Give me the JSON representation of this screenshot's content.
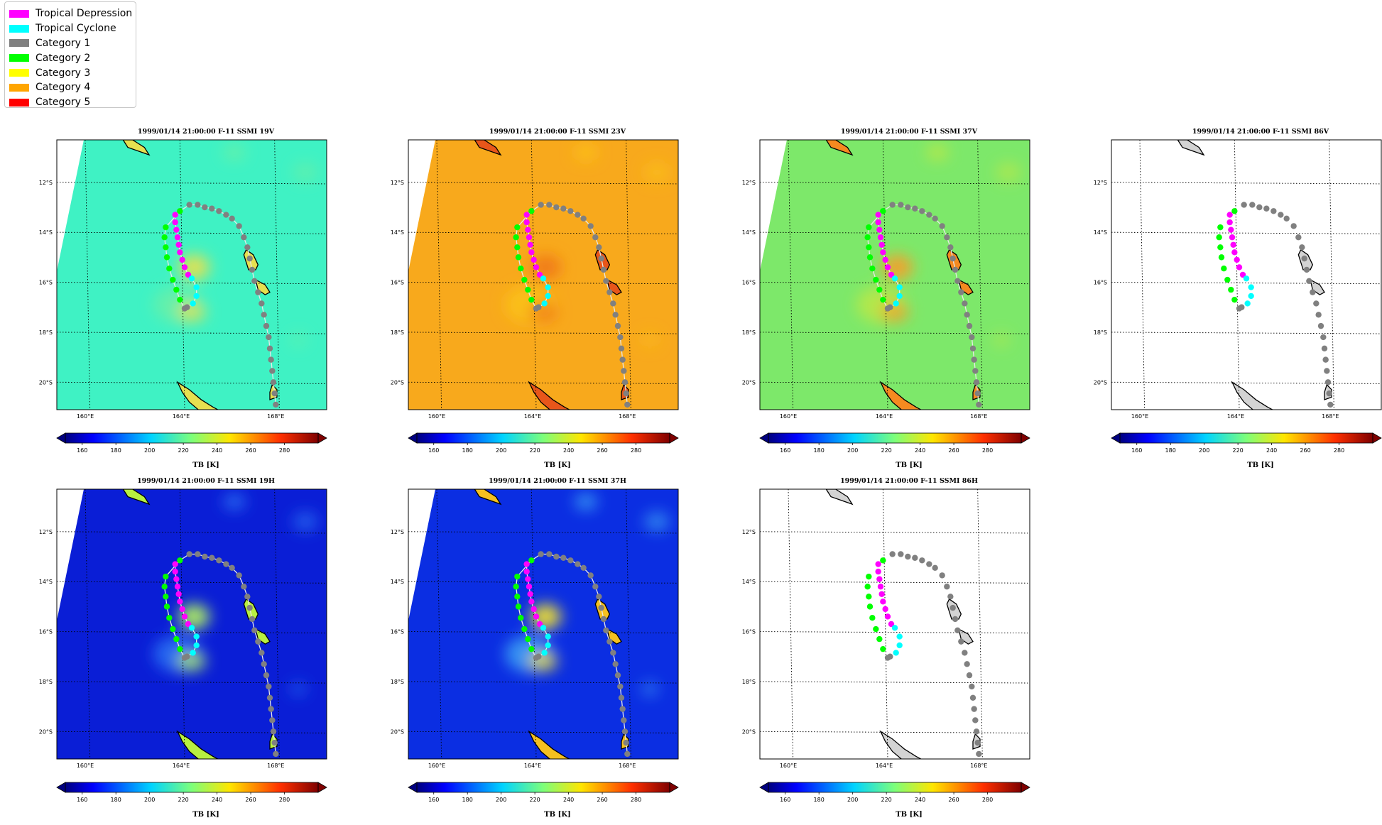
{
  "legend": [
    {
      "label": "Tropical Depression",
      "color": "#ff00ff"
    },
    {
      "label": "Tropical Cyclone",
      "color": "#00ffff"
    },
    {
      "label": "Category 1",
      "color": "#808080"
    },
    {
      "label": "Category 2",
      "color": "#00ff00"
    },
    {
      "label": "Category 3",
      "color": "#ffff00"
    },
    {
      "label": "Category 4",
      "color": "#ffa500"
    },
    {
      "label": "Category 5",
      "color": "#ff0000"
    }
  ],
  "axes": {
    "lon_ticks": [
      "160°E",
      "164°E",
      "168°E"
    ],
    "lat_ticks": [
      "12°S",
      "14°S",
      "16°S",
      "18°S",
      "20°S"
    ],
    "colorbar_ticks": [
      "160",
      "180",
      "200",
      "220",
      "240",
      "260",
      "280"
    ],
    "colorbar_label": "TB [K]",
    "colorbar_range": [
      150,
      300
    ]
  },
  "panels": [
    {
      "id": "19v",
      "title": "1999/01/14 21:00:00  F-11 SSMI 19V",
      "channel": "19V",
      "bg": "#3ff2c4",
      "blob": "#e6e050",
      "land": "#e6e050",
      "base": "#66f0a8",
      "swath": true,
      "track_line": true
    },
    {
      "id": "23v",
      "title": "1999/01/14 21:00:00  F-11 SSMI 23V",
      "channel": "23V",
      "bg": "#f8a91c",
      "blob": "#f07a18",
      "land": "#e8561a",
      "base": "#fbc21a",
      "swath": true,
      "track_line": true
    },
    {
      "id": "37v",
      "title": "1999/01/14 21:00:00  F-11 SSMI 37V",
      "channel": "37V",
      "bg": "#7de86a",
      "blob": "#f5a02a",
      "land": "#f58a20",
      "base": "#b8e848",
      "swath": true,
      "track_line": true
    },
    {
      "id": "86v",
      "title": "1999/01/14 21:00:00  F-11 SSMI 86V",
      "channel": "86V",
      "bg": "#ffffff",
      "blob": "#ffffff",
      "land": "#d3d3d3",
      "base": "#ffffff",
      "swath": false,
      "track_line": false
    },
    {
      "id": "19h",
      "title": "1999/01/14 21:00:00  F-11 SSMI 19H",
      "channel": "19H",
      "bg": "#0a1ed6",
      "blob": "#b0f060",
      "land": "#b8f040",
      "base": "#2a6ef2",
      "swath": true,
      "track_line": true
    },
    {
      "id": "37h",
      "title": "1999/01/14 21:00:00  F-11 SSMI 37H",
      "channel": "37H",
      "bg": "#0b2ee2",
      "blob": "#f0e030",
      "land": "#f5c020",
      "base": "#3a9cf4",
      "swath": true,
      "track_line": true
    },
    {
      "id": "86h",
      "title": "1999/01/14 21:00:00  F-11 SSMI 86H",
      "channel": "86H",
      "bg": "#ffffff",
      "blob": "#ffffff",
      "land": "#d3d3d3",
      "base": "#ffffff",
      "swath": false,
      "track_line": false
    }
  ],
  "track": {
    "colors": {
      "td": "#ff00ff",
      "tc": "#00ffff",
      "c1": "#808080",
      "c2": "#00ff00"
    },
    "points": [
      {
        "lon": 163.8,
        "lat": -13.3,
        "cat": "td"
      },
      {
        "lon": 163.8,
        "lat": -13.6,
        "cat": "td"
      },
      {
        "lon": 163.85,
        "lat": -13.9,
        "cat": "td"
      },
      {
        "lon": 163.9,
        "lat": -14.2,
        "cat": "td"
      },
      {
        "lon": 163.95,
        "lat": -14.5,
        "cat": "td"
      },
      {
        "lon": 164.0,
        "lat": -14.8,
        "cat": "td"
      },
      {
        "lon": 164.1,
        "lat": -15.1,
        "cat": "td"
      },
      {
        "lon": 164.2,
        "lat": -15.4,
        "cat": "td"
      },
      {
        "lon": 164.35,
        "lat": -15.7,
        "cat": "td"
      },
      {
        "lon": 164.5,
        "lat": -15.85,
        "cat": "tc"
      },
      {
        "lon": 164.7,
        "lat": -16.2,
        "cat": "tc"
      },
      {
        "lon": 164.7,
        "lat": -16.55,
        "cat": "tc"
      },
      {
        "lon": 164.55,
        "lat": -16.85,
        "cat": "tc"
      },
      {
        "lon": 164.3,
        "lat": -17.0,
        "cat": "c1"
      },
      {
        "lon": 164.2,
        "lat": -17.05,
        "cat": "c1"
      },
      {
        "lon": 164.0,
        "lat": -16.7,
        "cat": "c2"
      },
      {
        "lon": 163.85,
        "lat": -16.3,
        "cat": "c2"
      },
      {
        "lon": 163.7,
        "lat": -15.9,
        "cat": "c2"
      },
      {
        "lon": 163.55,
        "lat": -15.45,
        "cat": "c2"
      },
      {
        "lon": 163.45,
        "lat": -15.0,
        "cat": "c2"
      },
      {
        "lon": 163.4,
        "lat": -14.6,
        "cat": "c2"
      },
      {
        "lon": 163.35,
        "lat": -14.2,
        "cat": "c2"
      },
      {
        "lon": 163.4,
        "lat": -13.8,
        "cat": "c2"
      },
      {
        "lon": 164.0,
        "lat": -13.15,
        "cat": "c2"
      },
      {
        "lon": 164.4,
        "lat": -12.9,
        "cat": "c1"
      },
      {
        "lon": 164.75,
        "lat": -12.9,
        "cat": "c1"
      },
      {
        "lon": 165.05,
        "lat": -13.0,
        "cat": "c1"
      },
      {
        "lon": 165.35,
        "lat": -13.05,
        "cat": "c1"
      },
      {
        "lon": 165.65,
        "lat": -13.15,
        "cat": "c1"
      },
      {
        "lon": 165.95,
        "lat": -13.3,
        "cat": "c1"
      },
      {
        "lon": 166.2,
        "lat": -13.45,
        "cat": "c1"
      },
      {
        "lon": 166.5,
        "lat": -13.75,
        "cat": "c1"
      },
      {
        "lon": 166.7,
        "lat": -14.2,
        "cat": "c1"
      },
      {
        "lon": 166.85,
        "lat": -14.6,
        "cat": "c1"
      },
      {
        "lon": 166.95,
        "lat": -15.05,
        "cat": "c1"
      },
      {
        "lon": 167.05,
        "lat": -15.5,
        "cat": "c1"
      },
      {
        "lon": 167.15,
        "lat": -15.95,
        "cat": "c1"
      },
      {
        "lon": 167.3,
        "lat": -16.4,
        "cat": "c1"
      },
      {
        "lon": 167.45,
        "lat": -16.85,
        "cat": "c1"
      },
      {
        "lon": 167.55,
        "lat": -17.3,
        "cat": "c1"
      },
      {
        "lon": 167.65,
        "lat": -17.75,
        "cat": "c1"
      },
      {
        "lon": 167.75,
        "lat": -18.2,
        "cat": "c1"
      },
      {
        "lon": 167.8,
        "lat": -18.65,
        "cat": "c1"
      },
      {
        "lon": 167.85,
        "lat": -19.1,
        "cat": "c1"
      },
      {
        "lon": 167.9,
        "lat": -19.55,
        "cat": "c1"
      },
      {
        "lon": 167.95,
        "lat": -20.0,
        "cat": "c1"
      },
      {
        "lon": 168.0,
        "lat": -20.45,
        "cat": "c1"
      },
      {
        "lon": 168.05,
        "lat": -20.9,
        "cat": "c1"
      }
    ]
  }
}
